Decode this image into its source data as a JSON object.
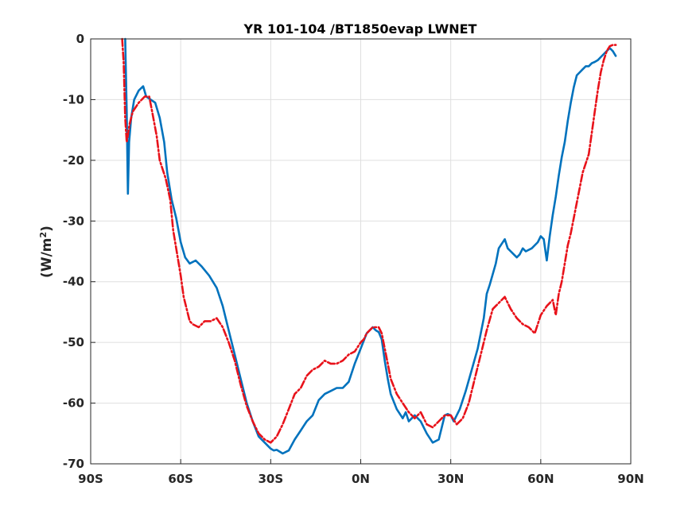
{
  "chart_data": {
    "type": "line",
    "title": "YR 101-104 /BT1850evap LWNET",
    "xlabel": "",
    "ylabel_text": "(W/m",
    "ylabel_sup": "2",
    "ylabel_close": ")",
    "xlim": [
      -90,
      90
    ],
    "ylim": [
      -70,
      0
    ],
    "x_ticks": [
      {
        "value": -90,
        "label": "90S"
      },
      {
        "value": -60,
        "label": "60S"
      },
      {
        "value": -30,
        "label": "30S"
      },
      {
        "value": 0,
        "label": "0N"
      },
      {
        "value": 30,
        "label": "30N"
      },
      {
        "value": 60,
        "label": "60N"
      },
      {
        "value": 90,
        "label": "90N"
      }
    ],
    "y_ticks": [
      {
        "value": 0,
        "label": "0"
      },
      {
        "value": -10,
        "label": "-10"
      },
      {
        "value": -20,
        "label": "-20"
      },
      {
        "value": -30,
        "label": "-30"
      },
      {
        "value": -40,
        "label": "-40"
      },
      {
        "value": -50,
        "label": "-50"
      },
      {
        "value": -60,
        "label": "-60"
      },
      {
        "value": -70,
        "label": "-70"
      }
    ],
    "grid": true,
    "series": [
      {
        "color": "#0072bd",
        "dash": "solid",
        "x": [
          -78.5,
          -78,
          -77.6,
          -77.2,
          -76.5,
          -75.5,
          -74,
          -72.5,
          -71.5,
          -70,
          -68.5,
          -67,
          -65.5,
          -64.5,
          -63,
          -61.5,
          -60,
          -58.5,
          -57,
          -55,
          -53,
          -50.5,
          -48,
          -46,
          -44,
          -42,
          -40,
          -38,
          -36,
          -34,
          -32,
          -30,
          -29,
          -28,
          -26,
          -24,
          -22,
          -20,
          -18,
          -16,
          -14,
          -12,
          -10,
          -8,
          -6,
          -4,
          -2,
          0,
          2,
          4,
          5,
          6,
          7,
          8,
          9,
          10,
          12,
          14,
          15,
          16,
          18,
          20,
          22,
          24,
          26,
          27,
          28,
          29,
          30,
          31,
          33,
          35,
          37,
          39,
          41,
          42,
          43,
          45,
          46,
          48,
          49,
          50,
          51,
          52,
          53,
          54,
          55,
          57,
          59,
          60,
          61,
          62,
          63,
          64,
          65,
          66,
          67,
          68,
          69,
          70,
          71,
          72,
          73,
          74,
          75,
          76,
          77,
          78,
          79,
          80,
          81,
          82,
          83,
          84,
          85
        ],
        "y": [
          0,
          -12,
          -25.5,
          -17,
          -13,
          -10,
          -8.5,
          -7.8,
          -9.5,
          -10,
          -10.5,
          -13,
          -17,
          -22,
          -26.5,
          -29.5,
          -33.5,
          -36,
          -37,
          -36.5,
          -37.5,
          -39,
          -41,
          -44,
          -48,
          -52,
          -56,
          -60,
          -63,
          -65.5,
          -66.5,
          -67.5,
          -67.8,
          -67.7,
          -68.3,
          -67.8,
          -66,
          -64.5,
          -63,
          -62,
          -59.5,
          -58.5,
          -58,
          -57.5,
          -57.5,
          -56.5,
          -53.5,
          -51,
          -48.5,
          -47.5,
          -48,
          -48.3,
          -49.5,
          -53,
          -56,
          -58.5,
          -61,
          -62.5,
          -61.5,
          -63,
          -62,
          -63,
          -65,
          -66.5,
          -66,
          -64,
          -62,
          -61.8,
          -62,
          -63,
          -61,
          -58,
          -54.5,
          -51,
          -46,
          -42,
          -40.5,
          -37,
          -34.5,
          -33,
          -34.5,
          -35,
          -35.5,
          -36,
          -35.5,
          -34.5,
          -35,
          -34.5,
          -33.5,
          -32.5,
          -33,
          -36.5,
          -32.5,
          -29,
          -26,
          -22.5,
          -19.5,
          -17,
          -13.5,
          -10.5,
          -8,
          -6,
          -5.5,
          -5,
          -4.5,
          -4.5,
          -4,
          -3.8,
          -3.5,
          -3,
          -2.5,
          -2,
          -1.5,
          -2,
          -2.8
        ]
      },
      {
        "color": "#e8121a",
        "dash": "dash-dot",
        "x": [
          -79.5,
          -79,
          -78.5,
          -78,
          -77,
          -76,
          -74,
          -72,
          -70.5,
          -69.5,
          -68,
          -67,
          -65,
          -63.5,
          -62.5,
          -61,
          -60,
          -59,
          -58,
          -57,
          -56,
          -54,
          -52,
          -50,
          -48,
          -46,
          -44,
          -42,
          -40,
          -38,
          -36,
          -34,
          -32,
          -30,
          -28,
          -26,
          -24,
          -22,
          -20,
          -18,
          -16,
          -14,
          -12,
          -10,
          -8,
          -6,
          -4,
          -2,
          0,
          1,
          2,
          4,
          6,
          7,
          8,
          9,
          10,
          12,
          14,
          16,
          18,
          20,
          22,
          24,
          26,
          28,
          30,
          32,
          34,
          36,
          38,
          40,
          42,
          44,
          46,
          48,
          50,
          52,
          54,
          56,
          58,
          60,
          62,
          64,
          65,
          66,
          67,
          68,
          69,
          70,
          72,
          74,
          76,
          78,
          79,
          80,
          81,
          82,
          83,
          84,
          85
        ],
        "y": [
          0,
          -4,
          -13,
          -17,
          -14,
          -12,
          -10.5,
          -9.5,
          -9.5,
          -12,
          -16,
          -20,
          -23,
          -26.5,
          -31.5,
          -36,
          -39,
          -42.5,
          -44.5,
          -46.5,
          -47,
          -47.5,
          -46.5,
          -46.5,
          -46,
          -47.5,
          -50,
          -53,
          -57,
          -60.5,
          -63,
          -65,
          -66,
          -66.5,
          -65.5,
          -63.5,
          -61,
          -58.5,
          -57.5,
          -55.5,
          -54.5,
          -54,
          -53,
          -53.5,
          -53.5,
          -53,
          -52,
          -51.5,
          -50,
          -49.5,
          -48.5,
          -47.5,
          -47.5,
          -48.5,
          -51,
          -53.5,
          -56,
          -58.5,
          -60,
          -61.5,
          -62.5,
          -61.5,
          -63.5,
          -64,
          -63,
          -62,
          -62,
          -63.5,
          -62.5,
          -60,
          -56,
          -52,
          -48,
          -44.5,
          -43.5,
          -42.5,
          -44.5,
          -46,
          -47,
          -47.5,
          -48.5,
          -45.5,
          -44,
          -43,
          -45.5,
          -42,
          -40,
          -37,
          -34,
          -32,
          -27,
          -22,
          -19,
          -12,
          -8.5,
          -5.5,
          -3.5,
          -2,
          -1.2,
          -1,
          -1
        ]
      }
    ]
  }
}
